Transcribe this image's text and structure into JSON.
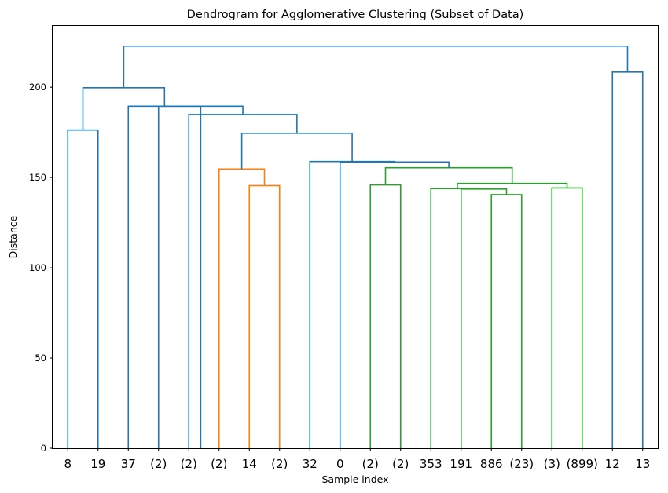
{
  "chart_data": {
    "type": "dendrogram",
    "title": "Dendrogram for Agglomerative Clustering (Subset of Data)",
    "xlabel": "Sample index",
    "ylabel": "Distance",
    "ylim": [
      0,
      234
    ],
    "yticks": [
      0,
      50,
      100,
      150,
      200
    ],
    "leaves": [
      "8",
      "19",
      "37",
      "(2)",
      "(2)",
      "(2)",
      "14",
      "(2)",
      "32",
      "0",
      "(2)",
      "(2)",
      "353",
      "191",
      "886",
      "(23)",
      "(3)",
      "(899)",
      "12",
      "13"
    ],
    "colors": {
      "above_threshold": "#1f77b4",
      "cluster_orange": "#ff7f0e",
      "cluster_green": "#2ca02c"
    },
    "links": [
      {
        "left": 0,
        "right": 1,
        "height": 176.3,
        "color": "#1f77b4"
      },
      {
        "left": 6,
        "right": 7,
        "height": 145.5,
        "color": "#ff7f0e"
      },
      {
        "left": 5,
        "right": 6.5,
        "height": 154.7,
        "color": "#ff7f0e"
      },
      {
        "left": 10,
        "right": 11,
        "height": 145.9,
        "color": "#2ca02c"
      },
      {
        "left": 14,
        "right": 15,
        "height": 140.5,
        "color": "#2ca02c"
      },
      {
        "left": 13,
        "right": 14.5,
        "height": 143.6,
        "color": "#2ca02c"
      },
      {
        "left": 12,
        "right": 13.75,
        "height": 143.9,
        "color": "#2ca02c"
      },
      {
        "left": 16,
        "right": 17,
        "height": 144.2,
        "color": "#2ca02c"
      },
      {
        "left": 12.875,
        "right": 16.5,
        "height": 146.7,
        "color": "#2ca02c"
      },
      {
        "left": 10.5,
        "right": 14.6875,
        "height": 155.4,
        "color": "#2ca02c"
      },
      {
        "left": 9,
        "right": 12.59375,
        "height": 158.6,
        "color": "#1f77b4"
      },
      {
        "left": 8,
        "right": 10.796875,
        "height": 158.9,
        "color": "#1f77b4"
      },
      {
        "left": 5.75,
        "right": 9.3984375,
        "height": 174.5,
        "color": "#1f77b4"
      },
      {
        "left": 4,
        "right": 7.57421875,
        "height": 184.9,
        "color": "#1f77b4"
      },
      {
        "left": 3,
        "right": 5.787109375,
        "height": 189.5,
        "color": "#1f77b4"
      },
      {
        "left": 2,
        "right": 4.3935546875,
        "height": 189.5,
        "color": "#1f77b4"
      },
      {
        "left": 0.5,
        "right": 3.19677734375,
        "height": 199.7,
        "color": "#1f77b4"
      },
      {
        "left": 18,
        "right": 19,
        "height": 208.4,
        "color": "#1f77b4"
      },
      {
        "left": 1.848388671875,
        "right": 18.5,
        "height": 222.8,
        "color": "#1f77b4"
      }
    ]
  }
}
